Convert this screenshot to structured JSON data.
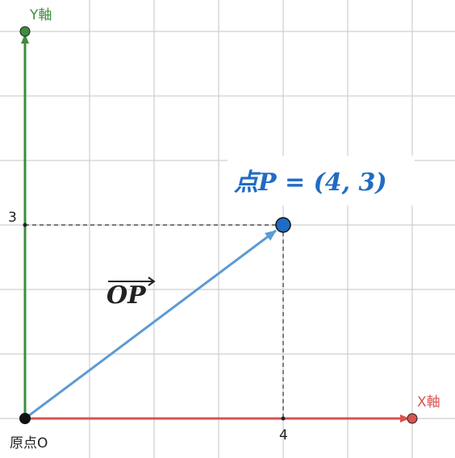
{
  "colors": {
    "grid": "#cfcfcf",
    "x_axis": "#d9534f",
    "y_axis": "#3c8d3c",
    "vector": "#5b9bd5",
    "point_fill": "#1f6cc4",
    "guide": "#333333",
    "origin": "#111111"
  },
  "axes": {
    "x_label": "X軸",
    "y_label": "Y軸"
  },
  "ticks": {
    "x": "4",
    "y": "3"
  },
  "origin": {
    "label": "原点O"
  },
  "vector": {
    "label": "OP"
  },
  "point": {
    "label": "点P = (4, 3)",
    "x": 4,
    "y": 3
  }
}
